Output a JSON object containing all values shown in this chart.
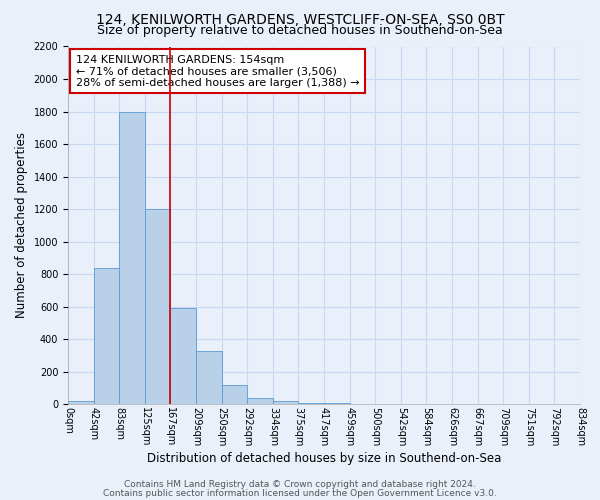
{
  "title": "124, KENILWORTH GARDENS, WESTCLIFF-ON-SEA, SS0 0BT",
  "subtitle": "Size of property relative to detached houses in Southend-on-Sea",
  "xlabel": "Distribution of detached houses by size in Southend-on-Sea",
  "ylabel": "Number of detached properties",
  "bin_counts": [
    20,
    840,
    1800,
    1200,
    590,
    330,
    120,
    40,
    20,
    5,
    5,
    0,
    0,
    0,
    0,
    0,
    0,
    0,
    0,
    0
  ],
  "bar_color": "#b8d0e8",
  "bar_edge_color": "#5b9bd5",
  "vline_bin": 4,
  "vline_color": "#cc0000",
  "annotation_text": "124 KENILWORTH GARDENS: 154sqm\n← 71% of detached houses are smaller (3,506)\n28% of semi-detached houses are larger (1,388) →",
  "annotation_box_edgecolor": "#cc0000",
  "annotation_box_facecolor": "#ffffff",
  "ylim": [
    0,
    2200
  ],
  "num_bins": 20,
  "tick_labels": [
    "0sqm",
    "42sqm",
    "83sqm",
    "125sqm",
    "167sqm",
    "209sqm",
    "250sqm",
    "292sqm",
    "334sqm",
    "375sqm",
    "417sqm",
    "459sqm",
    "500sqm",
    "542sqm",
    "584sqm",
    "626sqm",
    "667sqm",
    "709sqm",
    "751sqm",
    "792sqm",
    "834sqm"
  ],
  "footer_line1": "Contains HM Land Registry data © Crown copyright and database right 2024.",
  "footer_line2": "Contains public sector information licensed under the Open Government Licence v3.0.",
  "bg_color": "#eaf0fa",
  "grid_color": "#c8d8f0",
  "title_fontsize": 10,
  "subtitle_fontsize": 9,
  "axis_label_fontsize": 8.5,
  "tick_fontsize": 7,
  "footer_fontsize": 6.5,
  "annotation_fontsize": 8
}
